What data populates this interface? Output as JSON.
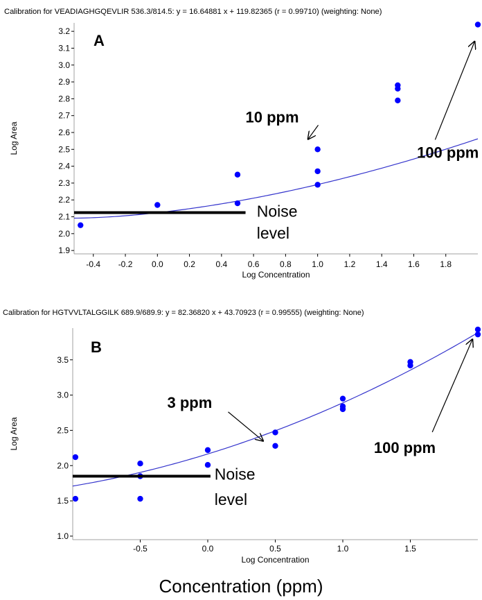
{
  "footer_caption": "Concentration (ppm)",
  "colors": {
    "points": "#0000ff",
    "fit": "#3333cc",
    "noise": "#000000",
    "frame": "#a0a0a0"
  },
  "chart_data": [
    {
      "type": "scatter",
      "panel_label": "A",
      "title": "Calibration for VEADIAGHGQEVLIR 536.3/814.5: y = 16.64881 x + 119.82365 (r = 0.99710)  (weighting: None)",
      "xlabel": "Log Concentration",
      "ylabel": "Log Area",
      "xlim": [
        -0.52,
        2.0
      ],
      "ylim": [
        1.88,
        3.25
      ],
      "xticks": [
        "-0.4",
        "-0.2",
        "0.0",
        "0.2",
        "0.4",
        "0.6",
        "0.8",
        "1.0",
        "1.2",
        "1.4",
        "1.6",
        "1.8"
      ],
      "xtick_values": [
        -0.4,
        -0.2,
        0.0,
        0.2,
        0.4,
        0.6,
        0.8,
        1.0,
        1.2,
        1.4,
        1.6,
        1.8
      ],
      "yticks": [
        "1.9",
        "2.0",
        "2.1",
        "2.2",
        "2.3",
        "2.4",
        "2.5",
        "2.6",
        "2.7",
        "2.8",
        "2.9",
        "3.0",
        "3.1",
        "3.2"
      ],
      "ytick_values": [
        1.9,
        2.0,
        2.1,
        2.2,
        2.3,
        2.4,
        2.5,
        2.6,
        2.7,
        2.8,
        2.9,
        3.0,
        3.1,
        3.2
      ],
      "series": [
        {
          "points": [
            {
              "x": -0.48,
              "y": 2.05
            },
            {
              "x": 0.0,
              "y": 2.17
            },
            {
              "x": 0.5,
              "y": 2.18
            },
            {
              "x": 0.5,
              "y": 2.35
            },
            {
              "x": 1.0,
              "y": 2.29
            },
            {
              "x": 1.0,
              "y": 2.37
            },
            {
              "x": 1.0,
              "y": 2.5
            },
            {
              "x": 1.5,
              "y": 2.79
            },
            {
              "x": 1.5,
              "y": 2.86
            },
            {
              "x": 1.5,
              "y": 2.88
            },
            {
              "x": 2.0,
              "y": 3.24
            }
          ]
        }
      ],
      "fit_curve": {
        "slope": 16.64881,
        "intercept": 119.82365
      },
      "noise_level": 2.125,
      "noise_x_end": 0.55,
      "annotations": [
        {
          "text": "10 ppm",
          "at": {
            "x": 0.55,
            "y": 2.66
          },
          "arrow_to": {
            "x": 0.94,
            "y": 2.56
          }
        },
        {
          "text": "100 ppm",
          "at": {
            "x": 1.62,
            "y": 2.45
          },
          "arrow_to": {
            "x": 1.98,
            "y": 3.14
          }
        },
        {
          "text": "Noise",
          "at": {
            "x": 0.62,
            "y": 2.1
          }
        },
        {
          "text": "level",
          "at": {
            "x": 0.62,
            "y": 1.97
          }
        }
      ]
    },
    {
      "type": "scatter",
      "panel_label": "B",
      "title": "Calibration for HGTVVLTALGGILK 689.9/689.9: y = 82.36820 x + 43.70923 (r = 0.99555)  (weighting: None)",
      "xlabel": "Log Concentration",
      "ylabel": "Log Area",
      "xlim": [
        -1.0,
        2.0
      ],
      "ylim": [
        0.95,
        3.95
      ],
      "xticks": [
        "-0.5",
        "0.0",
        "0.5",
        "1.0",
        "1.5"
      ],
      "xtick_values": [
        -0.5,
        0.0,
        0.5,
        1.0,
        1.5
      ],
      "yticks": [
        "1.0",
        "1.5",
        "2.0",
        "2.5",
        "3.0",
        "3.5"
      ],
      "ytick_values": [
        1.0,
        1.5,
        2.0,
        2.5,
        3.0,
        3.5
      ],
      "series": [
        {
          "points": [
            {
              "x": -0.98,
              "y": 2.12
            },
            {
              "x": -0.98,
              "y": 1.53
            },
            {
              "x": -0.5,
              "y": 2.03
            },
            {
              "x": -0.5,
              "y": 1.85
            },
            {
              "x": -0.5,
              "y": 1.53
            },
            {
              "x": 0.0,
              "y": 2.22
            },
            {
              "x": 0.0,
              "y": 2.01
            },
            {
              "x": 0.5,
              "y": 2.47
            },
            {
              "x": 0.5,
              "y": 2.28
            },
            {
              "x": 1.0,
              "y": 2.95
            },
            {
              "x": 1.0,
              "y": 2.84
            },
            {
              "x": 1.0,
              "y": 2.8
            },
            {
              "x": 1.5,
              "y": 3.47
            },
            {
              "x": 1.5,
              "y": 3.42
            },
            {
              "x": 2.0,
              "y": 3.93
            },
            {
              "x": 2.0,
              "y": 3.86
            }
          ]
        }
      ],
      "fit_curve": {
        "slope": 82.3682,
        "intercept": 43.70923
      },
      "noise_level": 1.85,
      "noise_x_end": 0.02,
      "annotations": [
        {
          "text": "3 ppm",
          "at": {
            "x": -0.3,
            "y": 2.82
          },
          "arrow_to": {
            "x": 0.41,
            "y": 2.35
          }
        },
        {
          "text": "100 ppm",
          "at": {
            "x": 1.23,
            "y": 2.18
          },
          "arrow_to": {
            "x": 1.96,
            "y": 3.79
          }
        },
        {
          "text": "Noise",
          "at": {
            "x": 0.05,
            "y": 1.8
          }
        },
        {
          "text": "level",
          "at": {
            "x": 0.05,
            "y": 1.44
          }
        }
      ]
    }
  ]
}
